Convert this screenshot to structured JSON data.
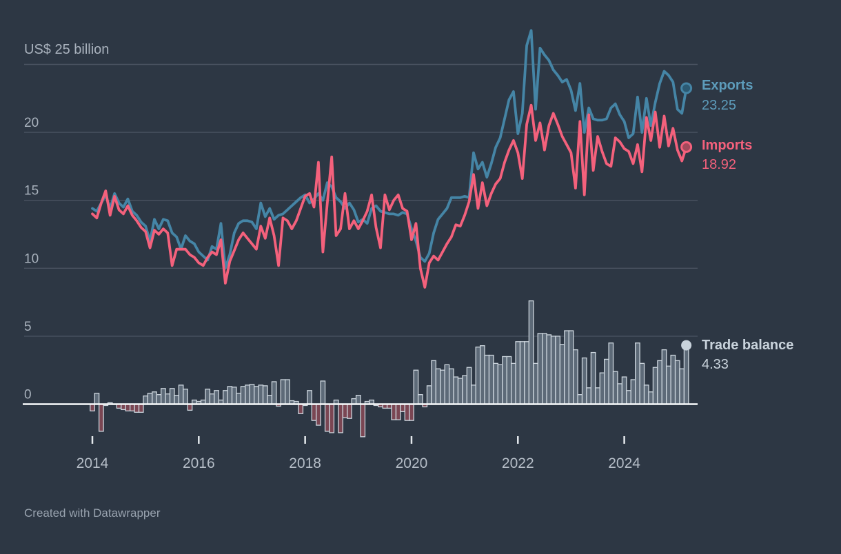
{
  "header": {
    "axis_top_label": "US$ 25 billion"
  },
  "footer": {
    "attribution": "Created with Datawrapper"
  },
  "colors": {
    "background": "#2d3744",
    "exports_line": "#4585a6",
    "exports_label": "#5d9cbb",
    "imports_line": "#f4617c",
    "balance_bar_positive": "#5d6a78",
    "balance_bar_negative": "#7a4653",
    "balance_bar_outline": "#cdd6de",
    "balance_label": "#c9d3dc",
    "gridline": "#4a5361",
    "zero_line": "#f8fafb",
    "axis_text": "#a9b2bd",
    "x_tick_text": "#b5bdc7"
  },
  "chart_data": {
    "type": "line",
    "subtype": "two line series plus bar series (trade balance)",
    "frequency": "monthly",
    "x_start": "2014-01",
    "x_end": "2025-03",
    "y_axis_label": "US$ 25 billion",
    "y_ticks": [
      0,
      5,
      10,
      15,
      20,
      25
    ],
    "ylim": [
      -3,
      28
    ],
    "grid": "horizontal",
    "x_tick_years": [
      "2014",
      "2016",
      "2018",
      "2020",
      "2022",
      "2024"
    ],
    "legend_position": "right-of-line-ends",
    "series": [
      {
        "name": "Exports",
        "type": "line",
        "color": "#4585a6",
        "last_value_label": "23.25",
        "values": [
          14.4,
          14.2,
          14.8,
          15.4,
          14.4,
          15.5,
          14.8,
          14.5,
          15.1,
          14.2,
          13.9,
          13.4,
          13.1,
          12.0,
          13.6,
          12.9,
          13.6,
          13.5,
          12.6,
          12.3,
          11.4,
          12.4,
          12.0,
          11.8,
          11.2,
          10.9,
          10.6,
          11.6,
          11.4,
          13.3,
          10.0,
          11.0,
          12.6,
          13.3,
          13.5,
          13.5,
          13.4,
          12.9,
          14.8,
          13.8,
          14.4,
          13.6,
          13.9,
          14.0,
          14.3,
          14.6,
          14.9,
          15.2,
          15.4,
          14.8,
          15.1,
          15.5,
          15.0,
          16.3,
          16.0,
          15.2,
          14.9,
          14.4,
          14.8,
          14.3,
          13.4,
          13.6,
          13.3,
          14.4,
          14.6,
          14.2,
          14.1,
          14.0,
          14.0,
          13.9,
          14.1,
          14.0,
          12.9,
          12.0,
          10.8,
          10.5,
          11.1,
          12.6,
          13.6,
          14.0,
          14.4,
          15.2,
          15.2,
          15.2,
          15.3,
          15.2,
          18.5,
          17.3,
          17.8,
          16.7,
          17.7,
          18.9,
          19.6,
          21.0,
          22.4,
          23.0,
          19.9,
          21.4,
          26.4,
          27.5,
          21.7,
          26.2,
          25.7,
          25.3,
          24.6,
          24.2,
          23.7,
          23.9,
          23.1,
          21.6,
          23.6,
          20.0,
          21.8,
          21.0,
          20.9,
          20.9,
          21.0,
          21.8,
          22.1,
          21.3,
          20.8,
          19.6,
          19.9,
          22.6,
          20.0,
          22.5,
          20.5,
          22.2,
          23.6,
          24.5,
          24.2,
          23.7,
          21.7,
          21.4,
          23.25
        ]
      },
      {
        "name": "Imports",
        "type": "line",
        "color": "#f4617c",
        "last_value_label": "18.92",
        "values": [
          14.0,
          13.7,
          14.8,
          15.7,
          13.9,
          15.3,
          14.3,
          14.0,
          14.6,
          13.9,
          13.5,
          13.0,
          12.7,
          11.5,
          12.8,
          12.5,
          12.9,
          12.6,
          10.2,
          11.4,
          11.4,
          11.4,
          11.0,
          10.8,
          10.4,
          10.2,
          10.8,
          11.2,
          11.0,
          12.1,
          8.9,
          10.5,
          11.3,
          12.1,
          12.6,
          12.2,
          11.8,
          11.4,
          13.1,
          12.2,
          13.7,
          12.4,
          10.2,
          13.7,
          13.5,
          12.9,
          13.5,
          14.4,
          15.3,
          15.5,
          14.5,
          17.8,
          11.2,
          14.8,
          18.2,
          12.4,
          12.9,
          15.5,
          12.9,
          13.5,
          12.9,
          13.5,
          14.2,
          15.4,
          13.0,
          11.5,
          15.4,
          14.3,
          15.0,
          15.4,
          14.4,
          14.2,
          12.1,
          13.3,
          10.0,
          8.6,
          10.4,
          10.9,
          10.6,
          11.2,
          11.8,
          12.3,
          13.2,
          13.1,
          13.9,
          14.9,
          16.9,
          14.4,
          16.3,
          14.6,
          15.5,
          16.2,
          16.6,
          17.8,
          18.7,
          19.4,
          18.5,
          16.6,
          20.6,
          22.0,
          19.4,
          20.7,
          18.7,
          20.5,
          21.4,
          20.6,
          19.7,
          19.1,
          18.5,
          15.9,
          20.8,
          15.4,
          21.3,
          17.2,
          19.7,
          18.6,
          17.7,
          17.5,
          19.6,
          19.3,
          18.8,
          18.6,
          17.7,
          19.1,
          17.1,
          21.1,
          19.4,
          21.5,
          18.9,
          21.2,
          19.0,
          20.3,
          18.7,
          17.9,
          18.92
        ]
      },
      {
        "name": "Trade balance",
        "type": "bar",
        "color_positive": "#5d6a78",
        "color_negative": "#7a4653",
        "outline": "#cdd6de",
        "last_value_label": "4.33",
        "values": [
          -0.5,
          0.8,
          -2.0,
          -0.1,
          0.1,
          0.0,
          -0.3,
          -0.4,
          -0.5,
          -0.5,
          -0.6,
          -0.6,
          0.6,
          0.8,
          0.9,
          0.7,
          1.15,
          0.75,
          1.15,
          0.65,
          1.4,
          1.1,
          -0.45,
          0.3,
          0.2,
          0.3,
          1.1,
          0.75,
          1.0,
          0.3,
          1.0,
          1.3,
          1.25,
          0.8,
          1.3,
          1.4,
          1.45,
          1.3,
          1.4,
          1.35,
          0.65,
          1.65,
          -0.15,
          1.8,
          1.8,
          0.25,
          0.2,
          -0.7,
          -0.1,
          1.0,
          -1.2,
          -1.55,
          1.7,
          -2.0,
          -2.1,
          0.3,
          -2.1,
          -1.0,
          -1.05,
          0.4,
          0.65,
          -2.4,
          0.2,
          0.3,
          -0.1,
          -0.2,
          -0.3,
          -0.3,
          -1.15,
          -1.15,
          -0.55,
          -1.2,
          -1.2,
          2.5,
          0.7,
          -0.2,
          1.35,
          3.2,
          2.6,
          2.5,
          2.9,
          2.6,
          2.0,
          1.9,
          2.1,
          2.7,
          1.4,
          4.2,
          4.3,
          3.6,
          3.6,
          3.0,
          2.9,
          3.5,
          3.5,
          3.0,
          4.6,
          4.6,
          4.6,
          7.6,
          3.0,
          5.2,
          5.2,
          5.1,
          5.0,
          5.0,
          4.4,
          5.4,
          5.4,
          4.0,
          0.7,
          3.4,
          1.2,
          3.8,
          1.2,
          2.3,
          3.3,
          4.5,
          2.4,
          1.5,
          2.0,
          1.0,
          1.8,
          4.5,
          3.0,
          1.4,
          0.9,
          2.7,
          3.2,
          4.0,
          2.8,
          3.6,
          3.2,
          2.6,
          4.33
        ]
      }
    ]
  }
}
